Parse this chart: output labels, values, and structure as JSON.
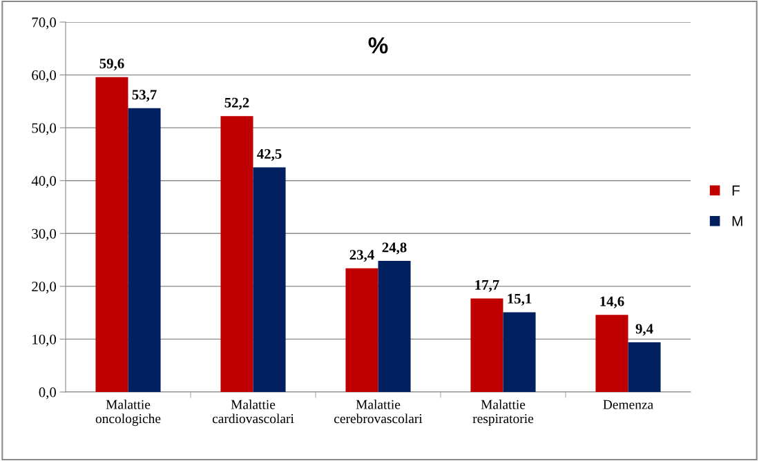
{
  "chart_data": {
    "type": "bar",
    "title": "%",
    "categories": [
      "Malattie\noncologiche",
      "Malattie\ncardiovascolari",
      "Malattie\ncerebrovascolari",
      "Malattie\nrespiratorie",
      "Demenza"
    ],
    "series": [
      {
        "name": "F",
        "color": "#c00000",
        "values": [
          59.6,
          52.2,
          23.4,
          17.7,
          14.6
        ],
        "value_labels": [
          "59,6",
          "52,2",
          "23,4",
          "17,7",
          "14,6"
        ]
      },
      {
        "name": "M",
        "color": "#002060",
        "values": [
          53.7,
          42.5,
          24.8,
          15.1,
          9.4
        ],
        "value_labels": [
          "53,7",
          "42,5",
          "24,8",
          "15,1",
          "9,4"
        ]
      }
    ],
    "ylim": [
      0,
      70
    ],
    "yticks": [
      {
        "value": 0,
        "label": "0,0"
      },
      {
        "value": 10,
        "label": "10,0"
      },
      {
        "value": 20,
        "label": "20,0"
      },
      {
        "value": 30,
        "label": "30,0"
      },
      {
        "value": 40,
        "label": "40,0"
      },
      {
        "value": 50,
        "label": "50,0"
      },
      {
        "value": 60,
        "label": "60,0"
      },
      {
        "value": 70,
        "label": "70,0"
      }
    ],
    "grid": "y",
    "legend": "right"
  }
}
